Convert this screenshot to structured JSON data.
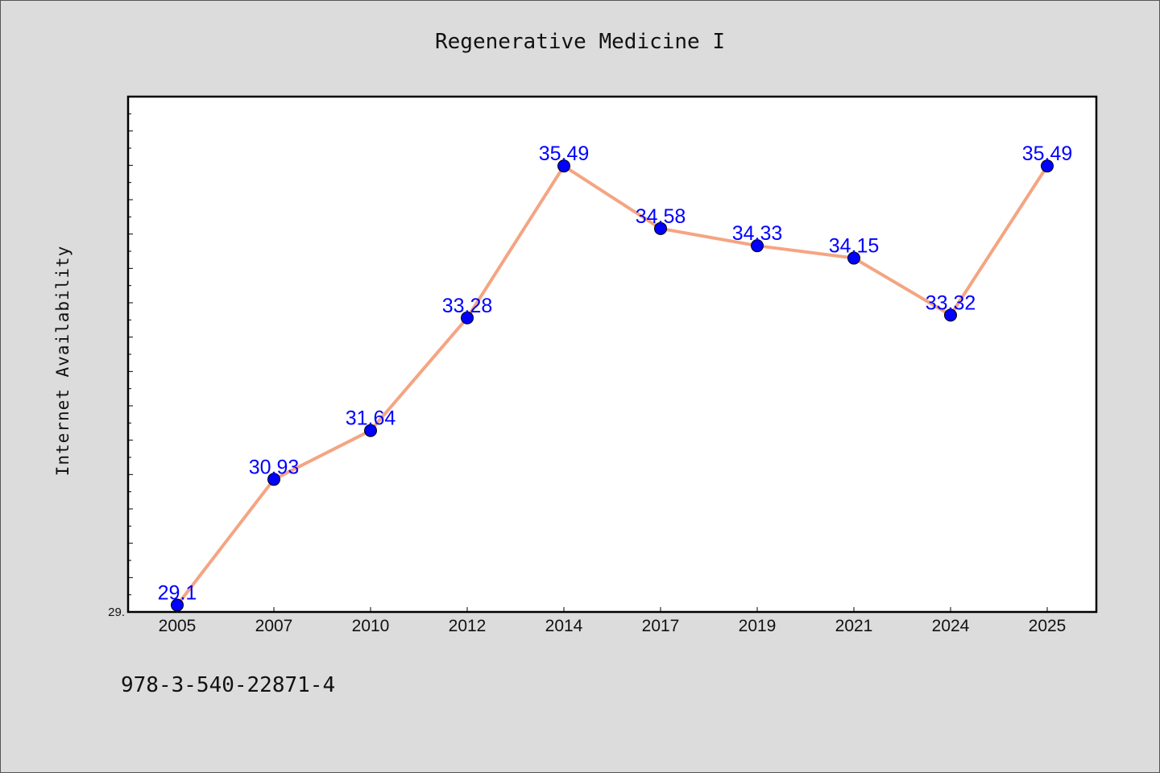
{
  "chart_data": {
    "type": "line",
    "title": "Regenerative Medicine I",
    "xlabel": "",
    "ylabel": "Internet Availability",
    "categories": [
      "2005",
      "2007",
      "2010",
      "2012",
      "2014",
      "2017",
      "2019",
      "2021",
      "2024",
      "2025"
    ],
    "series": [
      {
        "values": [
          29.1,
          30.93,
          31.64,
          33.28,
          35.49,
          34.58,
          34.33,
          34.15,
          33.32,
          35.49
        ],
        "labels": [
          "29.1",
          "30.93",
          "31.64",
          "33.28",
          "35.49",
          "34.58",
          "34.33",
          "34.15",
          "33.32",
          "35.49"
        ],
        "line_color": "#f4a582",
        "marker_color": "#0000ff"
      }
    ],
    "y_tick_labels": [
      "29."
    ],
    "ylim": [
      29.0,
      36.5
    ],
    "grid": false,
    "legend": "none",
    "colors": {
      "background": "#dcdcdc",
      "plot_background": "#ffffff",
      "label_color": "#0000ff"
    }
  },
  "footnote": "978-3-540-22871-4"
}
